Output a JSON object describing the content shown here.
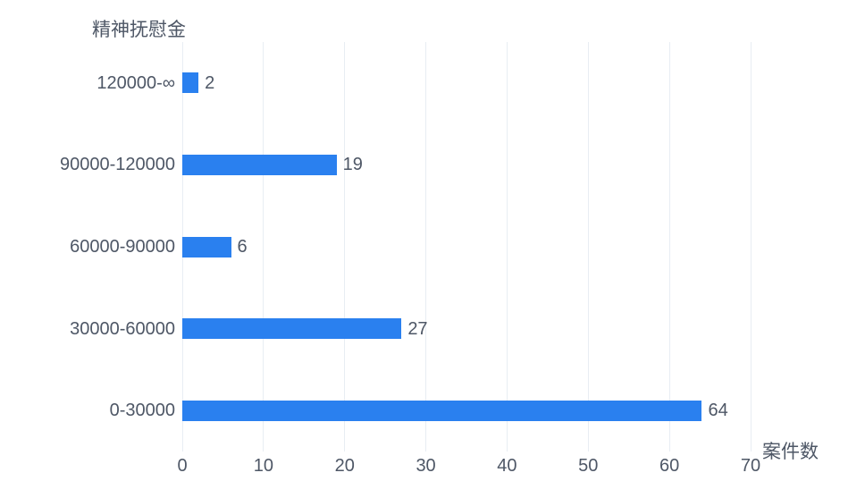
{
  "chart_data": {
    "type": "bar",
    "orientation": "horizontal",
    "title": "精神抚慰金",
    "xlabel": "案件数",
    "ylabel": "精神抚慰金",
    "categories": [
      "120000-∞",
      "90000-120000",
      "60000-90000",
      "30000-60000",
      "0-30000"
    ],
    "values": [
      2,
      19,
      6,
      27,
      64
    ],
    "xlim": [
      0,
      70
    ],
    "xticks": [
      0,
      10,
      20,
      30,
      40,
      50,
      60,
      70
    ],
    "grid": true,
    "legend": false,
    "value_labels": true,
    "colors": {
      "bar": "#2a80ef",
      "text": "#4e5766",
      "grid": "#e8edf3",
      "background": "#ffffff"
    }
  }
}
